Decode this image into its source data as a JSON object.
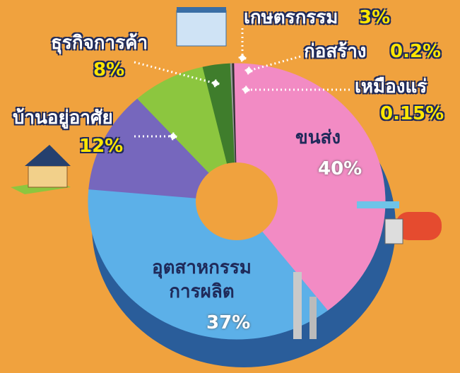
{
  "chart_data": {
    "type": "donut",
    "categories": [
      "ขนส่ง",
      "อุตสาหกรรม\nการผลิต",
      "บ้านอยู่อาศัย",
      "ธุรกิจการค้า",
      "เกษตรกรรม",
      "ก่อสร้าง",
      "เหมืองแร่"
    ],
    "values": [
      40,
      37,
      12,
      8,
      3,
      0.2,
      0.15
    ],
    "value_labels": [
      "40%",
      "37%",
      "12%",
      "8%",
      "3%",
      "0.2%",
      "0.15%"
    ],
    "colors": [
      "#f28bc4",
      "#5cb0e8",
      "#7667bd",
      "#8cc63f",
      "#3f7d2c",
      "#9a9a9a",
      "#333333"
    ]
  }
}
